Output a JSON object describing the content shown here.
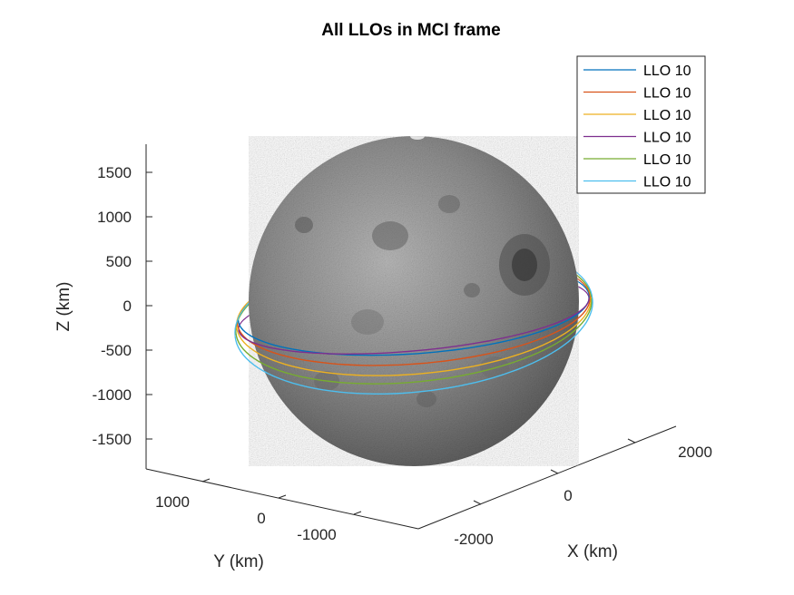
{
  "chart_data": {
    "type": "line",
    "subtype": "3d-orbit-plot",
    "title": "All LLOs in MCI frame",
    "xlabel": "X (km)",
    "ylabel": "Y (km)",
    "zlabel": "Z (km)",
    "x_ticks": [
      "-2000",
      "0",
      "2000"
    ],
    "y_ticks": [
      "1000",
      "0",
      "-1000"
    ],
    "z_ticks": [
      "1500",
      "1000",
      "500",
      "0",
      "-500",
      "-1000",
      "-1500"
    ],
    "z_tick_values": [
      1500,
      1000,
      500,
      0,
      -500,
      -1000,
      -1500
    ],
    "zlim": [
      -1800,
      1800
    ],
    "body": "moon-sphere",
    "body_radius_km": 1737,
    "legend_position": "top-right",
    "series": [
      {
        "name": "LLO 10",
        "color": "#0072BD",
        "orbit_radius_km": 1850,
        "inclination_deg": 10
      },
      {
        "name": "LLO 10",
        "color": "#D95319",
        "orbit_radius_km": 1860,
        "inclination_deg": 12
      },
      {
        "name": "LLO 10",
        "color": "#EDB120",
        "orbit_radius_km": 1870,
        "inclination_deg": 14
      },
      {
        "name": "LLO 10",
        "color": "#7E2F8E",
        "orbit_radius_km": 1850,
        "inclination_deg": 8
      },
      {
        "name": "LLO 10",
        "color": "#77AC30",
        "orbit_radius_km": 1880,
        "inclination_deg": 15
      },
      {
        "name": "LLO 10",
        "color": "#4DBEEE",
        "orbit_radius_km": 1890,
        "inclination_deg": 17
      }
    ]
  }
}
